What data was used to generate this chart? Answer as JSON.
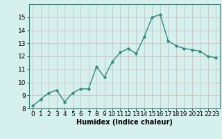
{
  "x": [
    0,
    1,
    2,
    3,
    4,
    5,
    6,
    7,
    8,
    9,
    10,
    11,
    12,
    13,
    14,
    15,
    16,
    17,
    18,
    19,
    20,
    21,
    22,
    23
  ],
  "y": [
    8.2,
    8.7,
    9.2,
    9.4,
    8.5,
    9.2,
    9.5,
    9.5,
    11.2,
    10.4,
    11.6,
    12.3,
    12.6,
    12.2,
    13.5,
    15.0,
    15.2,
    13.2,
    12.8,
    12.6,
    12.5,
    12.4,
    12.0,
    11.9
  ],
  "xlabel": "Humidex (Indice chaleur)",
  "line_color": "#2d8a7a",
  "marker_color": "#2d8a7a",
  "bg_color": "#d6f0ee",
  "grid_color": "#c8b8b8",
  "xlim": [
    -0.5,
    23.5
  ],
  "ylim": [
    8,
    16
  ],
  "yticks": [
    8,
    9,
    10,
    11,
    12,
    13,
    14,
    15
  ],
  "xticks": [
    0,
    1,
    2,
    3,
    4,
    5,
    6,
    7,
    8,
    9,
    10,
    11,
    12,
    13,
    14,
    15,
    16,
    17,
    18,
    19,
    20,
    21,
    22,
    23
  ],
  "xlabel_fontsize": 7,
  "tick_fontsize": 6.5,
  "linewidth": 1.0,
  "markersize": 2.5
}
